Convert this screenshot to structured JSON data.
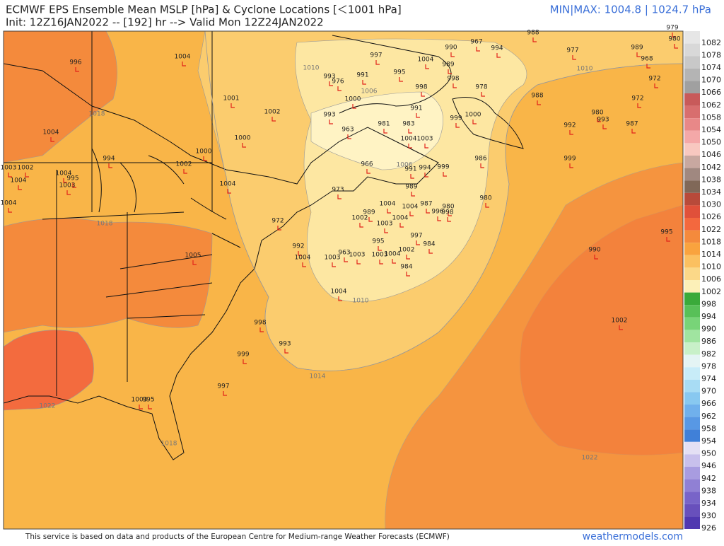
{
  "header": {
    "title": "ECMWF EPS Ensemble Mean MSLP [hPa] & Cyclone Locations [＜1001 hPa]",
    "subtitle": "Init: 12Z16JAN2022 -- [192] hr --> Valid Mon 12Z24JAN2022",
    "minmax": "MIN|MAX: 1004.8 | 1024.7 hPa"
  },
  "contours": [
    "1010",
    "1006",
    "1018",
    "1018",
    "1006",
    "1010",
    "1014",
    "1022",
    "1018",
    "1010",
    "1022"
  ],
  "cyclones": [
    "996",
    "1004",
    "1001",
    "1002",
    "1000",
    "1000",
    "1004",
    "994",
    "1004",
    "995",
    "1003",
    "1002",
    "1004",
    "1003",
    "1004",
    "1002",
    "1004",
    "1005",
    "972",
    "992",
    "1004",
    "1003",
    "963",
    "1003",
    "998",
    "993",
    "999",
    "997",
    "1003",
    "995",
    "988",
    "997",
    "967",
    "994",
    "1004",
    "989",
    "995",
    "990",
    "993",
    "976",
    "991",
    "998",
    "998",
    "978",
    "1000",
    "991",
    "993",
    "981",
    "983",
    "963",
    "1000",
    "999",
    "1004",
    "1003",
    "966",
    "994",
    "991",
    "999",
    "973",
    "989",
    "1004",
    "1004",
    "987",
    "980",
    "996",
    "998",
    "989",
    "1002",
    "1004",
    "1003",
    "997",
    "995",
    "984",
    "1002",
    "1004",
    "1003",
    "984",
    "986",
    "980",
    "1004",
    "988",
    "977",
    "989",
    "968",
    "979",
    "980",
    "972",
    "972",
    "980",
    "993",
    "987",
    "992",
    "999",
    "990",
    "995",
    "1002"
  ],
  "colorbar": [
    1082,
    1078,
    1074,
    1070,
    1066,
    1062,
    1058,
    1054,
    1050,
    1046,
    1042,
    1038,
    1034,
    1030,
    1026,
    1022,
    1018,
    1014,
    1010,
    1006,
    1002,
    998,
    994,
    990,
    986,
    982,
    978,
    974,
    970,
    966,
    962,
    958,
    954,
    950,
    946,
    942,
    938,
    934,
    930,
    926
  ],
  "footer": {
    "credit": "This service is based on data and products of the European Centre for Medium-range Weather Forecasts (ECMWF)",
    "brand": "weathermodels.com"
  }
}
